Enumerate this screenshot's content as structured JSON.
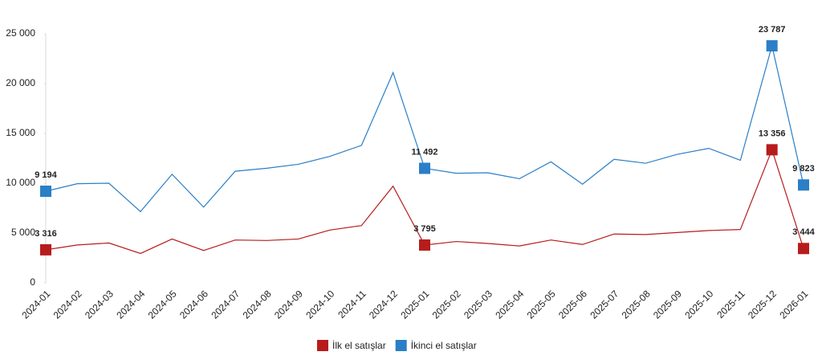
{
  "chart_data": {
    "type": "line",
    "categories": [
      "2024-01",
      "2024-02",
      "2024-03",
      "2024-04",
      "2024-05",
      "2024-06",
      "2024-07",
      "2024-08",
      "2024-09",
      "2024-10",
      "2024-11",
      "2024-12",
      "2025-01",
      "2025-02",
      "2025-03",
      "2025-04",
      "2025-05",
      "2025-06",
      "2025-07",
      "2025-08",
      "2025-09",
      "2025-10",
      "2025-11",
      "2025-12",
      "2026-01"
    ],
    "series": [
      {
        "name": "İlk el satışlar",
        "color": "#b71c1c",
        "values": [
          3316,
          3800,
          4000,
          2950,
          4400,
          3250,
          4300,
          4250,
          4400,
          5300,
          5750,
          9700,
          3795,
          4150,
          3950,
          3700,
          4300,
          3850,
          4900,
          4850,
          5050,
          5250,
          5350,
          13356,
          3444
        ],
        "value_labels": [
          "3 316",
          null,
          null,
          null,
          null,
          null,
          null,
          null,
          null,
          null,
          null,
          null,
          "3 795",
          null,
          null,
          null,
          null,
          null,
          null,
          null,
          null,
          null,
          null,
          "13 356",
          "3 444"
        ]
      },
      {
        "name": "İkinci el satışlar",
        "color": "#2a7fc7",
        "values": [
          9194,
          9950,
          10000,
          7150,
          10900,
          7600,
          11200,
          11500,
          11900,
          12700,
          13800,
          21100,
          11492,
          11000,
          11050,
          10450,
          12150,
          9900,
          12400,
          12000,
          12900,
          13500,
          12300,
          23787,
          9823
        ],
        "value_labels": [
          "9 194",
          null,
          null,
          null,
          null,
          null,
          null,
          null,
          null,
          null,
          null,
          null,
          "11 492",
          null,
          null,
          null,
          null,
          null,
          null,
          null,
          null,
          null,
          null,
          "23 787",
          "9 823"
        ]
      }
    ],
    "ylim": [
      0,
      25000
    ],
    "yticks": [
      0,
      {
        "value": 5000,
        "label": "5 000"
      },
      {
        "value": 10000,
        "label": "10 000"
      },
      {
        "value": 15000,
        "label": "15 000"
      },
      {
        "value": 20000,
        "label": "20 000"
      },
      {
        "value": 25000,
        "label": "25 000"
      }
    ],
    "grid": false,
    "legend": "bottom"
  }
}
